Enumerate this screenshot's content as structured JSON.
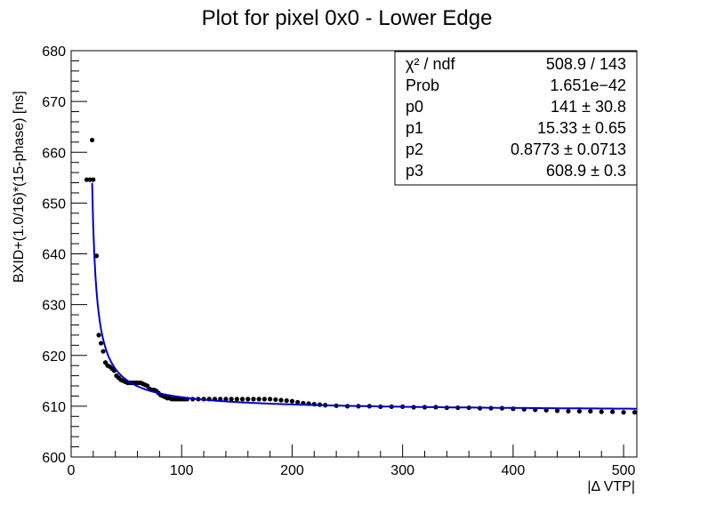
{
  "chart_data": {
    "type": "scatter",
    "title": "Plot for pixel 0x0 - Lower Edge",
    "xlabel": "|Δ VTP|",
    "ylabel": "BXID+(1.0/16)*(15-phase)  [ns]",
    "xlim": [
      0,
      512
    ],
    "ylim": [
      600,
      680
    ],
    "x_ticks": [
      0,
      100,
      200,
      300,
      400,
      500
    ],
    "y_ticks": [
      600,
      610,
      620,
      630,
      640,
      650,
      660,
      670,
      680
    ],
    "grid": false,
    "marker_color": "#000000",
    "fit_color": "#0000cc",
    "fit": {
      "model": "p0/(x - p1)^p2 + p3",
      "p0": 141,
      "p1": 15.33,
      "p2": 0.8773,
      "p3": 608.9,
      "x_range": [
        19,
        512
      ]
    },
    "points_x": [
      14,
      17,
      19,
      20,
      23,
      25,
      27,
      29,
      31,
      33,
      35,
      37,
      39,
      41,
      43,
      45,
      47,
      49,
      51,
      53,
      55,
      57,
      59,
      61,
      63,
      65,
      67,
      69,
      71,
      73,
      75,
      77,
      79,
      81,
      83,
      85,
      87,
      89,
      91,
      93,
      95,
      97,
      99,
      101,
      103,
      105,
      110,
      115,
      120,
      125,
      130,
      135,
      140,
      145,
      150,
      155,
      160,
      165,
      170,
      175,
      180,
      185,
      190,
      195,
      200,
      205,
      210,
      215,
      220,
      225,
      230,
      240,
      250,
      260,
      270,
      280,
      290,
      300,
      310,
      320,
      330,
      340,
      350,
      360,
      370,
      380,
      390,
      400,
      410,
      420,
      430,
      440,
      450,
      460,
      470,
      480,
      490,
      500,
      510
    ],
    "points_y": [
      654.6,
      654.6,
      662.4,
      654.6,
      639.6,
      624.0,
      622.4,
      620.8,
      618.6,
      618.0,
      617.8,
      617.4,
      617.0,
      616.0,
      615.6,
      615.2,
      615.0,
      614.8,
      614.6,
      614.6,
      614.6,
      614.6,
      614.6,
      614.6,
      614.6,
      614.4,
      614.2,
      614.0,
      613.4,
      613.2,
      613.2,
      613.0,
      612.6,
      612.2,
      612.0,
      611.8,
      611.6,
      611.6,
      611.4,
      611.4,
      611.4,
      611.4,
      611.4,
      611.4,
      611.4,
      611.4,
      611.4,
      611.4,
      611.4,
      611.4,
      611.4,
      611.4,
      611.4,
      611.4,
      611.4,
      611.4,
      611.4,
      611.4,
      611.4,
      611.4,
      611.4,
      611.3,
      611.2,
      611.1,
      611.0,
      610.8,
      610.6,
      610.5,
      610.4,
      610.3,
      610.2,
      610.1,
      610.0,
      610.0,
      610.0,
      609.9,
      609.9,
      609.9,
      609.8,
      609.8,
      609.8,
      609.7,
      609.7,
      609.7,
      609.6,
      609.6,
      609.6,
      609.5,
      609.4,
      609.3,
      609.2,
      609.1,
      609.0,
      609.0,
      609.0,
      608.9,
      608.9,
      608.8,
      608.8
    ]
  },
  "stats_box": {
    "rows": [
      {
        "label": "χ² / ndf",
        "value": "508.9 / 143"
      },
      {
        "label": "Prob",
        "value": "1.651e−42"
      },
      {
        "label": "p0",
        "value": "141 ± 30.8"
      },
      {
        "label": "p1",
        "value": "15.33 ± 0.65"
      },
      {
        "label": "p2",
        "value": "0.8773 ± 0.0713"
      },
      {
        "label": "p3",
        "value": "608.9 ± 0.3"
      }
    ]
  }
}
